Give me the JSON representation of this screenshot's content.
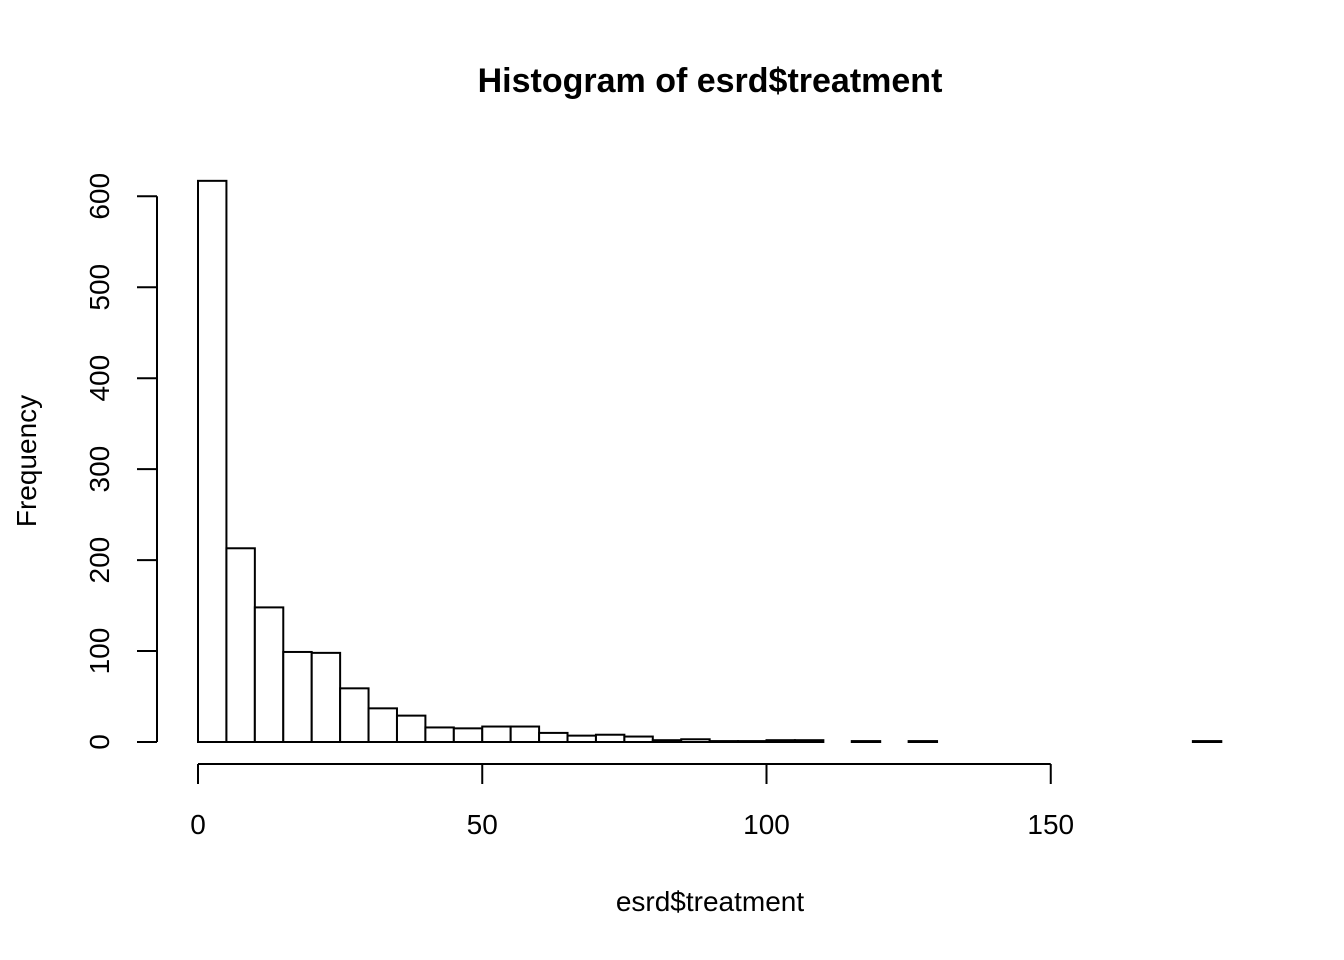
{
  "chart_data": {
    "type": "bar",
    "title": "Histogram of esrd$treatment",
    "xlabel": "esrd$treatment",
    "ylabel": "Frequency",
    "bin_width": 5,
    "bins": [
      {
        "x0": 0,
        "x1": 5,
        "count": 617
      },
      {
        "x0": 5,
        "x1": 10,
        "count": 213
      },
      {
        "x0": 10,
        "x1": 15,
        "count": 148
      },
      {
        "x0": 15,
        "x1": 20,
        "count": 99
      },
      {
        "x0": 20,
        "x1": 25,
        "count": 98
      },
      {
        "x0": 25,
        "x1": 30,
        "count": 59
      },
      {
        "x0": 30,
        "x1": 35,
        "count": 37
      },
      {
        "x0": 35,
        "x1": 40,
        "count": 29
      },
      {
        "x0": 40,
        "x1": 45,
        "count": 16
      },
      {
        "x0": 45,
        "x1": 50,
        "count": 15
      },
      {
        "x0": 50,
        "x1": 55,
        "count": 17
      },
      {
        "x0": 55,
        "x1": 60,
        "count": 17
      },
      {
        "x0": 60,
        "x1": 65,
        "count": 10
      },
      {
        "x0": 65,
        "x1": 70,
        "count": 7
      },
      {
        "x0": 70,
        "x1": 75,
        "count": 8
      },
      {
        "x0": 75,
        "x1": 80,
        "count": 6
      },
      {
        "x0": 80,
        "x1": 85,
        "count": 2
      },
      {
        "x0": 85,
        "x1": 90,
        "count": 3
      },
      {
        "x0": 90,
        "x1": 95,
        "count": 1
      },
      {
        "x0": 95,
        "x1": 100,
        "count": 1
      },
      {
        "x0": 100,
        "x1": 105,
        "count": 2
      },
      {
        "x0": 105,
        "x1": 110,
        "count": 2
      },
      {
        "x0": 110,
        "x1": 115,
        "count": 0
      },
      {
        "x0": 115,
        "x1": 120,
        "count": 1
      },
      {
        "x0": 120,
        "x1": 125,
        "count": 0
      },
      {
        "x0": 125,
        "x1": 130,
        "count": 1
      },
      {
        "x0": 130,
        "x1": 135,
        "count": 0
      },
      {
        "x0": 135,
        "x1": 140,
        "count": 0
      },
      {
        "x0": 140,
        "x1": 145,
        "count": 0
      },
      {
        "x0": 145,
        "x1": 150,
        "count": 0
      },
      {
        "x0": 150,
        "x1": 155,
        "count": 0
      },
      {
        "x0": 155,
        "x1": 160,
        "count": 0
      },
      {
        "x0": 160,
        "x1": 165,
        "count": 0
      },
      {
        "x0": 165,
        "x1": 170,
        "count": 0
      },
      {
        "x0": 170,
        "x1": 175,
        "count": 0
      },
      {
        "x0": 175,
        "x1": 180,
        "count": 1
      }
    ],
    "xlim": [
      0,
      180
    ],
    "ylim": [
      0,
      617
    ],
    "xticks": [
      0,
      50,
      100,
      150
    ],
    "yticks": [
      0,
      100,
      200,
      300,
      400,
      500,
      600
    ],
    "grid": false,
    "bar_fill": "#ffffff",
    "bar_stroke": "#000000"
  }
}
